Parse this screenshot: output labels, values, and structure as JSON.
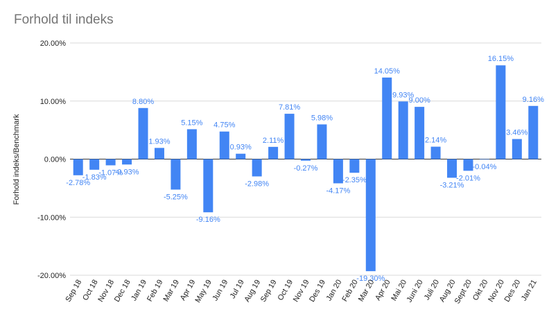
{
  "chart_data": {
    "type": "bar",
    "title": "Forhold til indeks",
    "ylabel": "Forhold indeks/Benchmark",
    "xlabel": "",
    "ylim": [
      -20,
      20
    ],
    "yticks": [
      "-20.00%",
      "-10.00%",
      "0.00%",
      "10.00%",
      "20.00%"
    ],
    "ytick_values": [
      -20,
      -10,
      0,
      10,
      20
    ],
    "grid": true,
    "legend": "none",
    "bar_color": "#4285f4",
    "label_color": "#4285f4",
    "categories": [
      "Sep 18",
      "Oct 18",
      "Nov 18",
      "Dec 18",
      "Jan 19",
      "Feb 19",
      "Mar 19",
      "Apr 19",
      "May 19",
      "Jun 19",
      "Jul 19",
      "Aug 19",
      "Sep 19",
      "Oct 19",
      "Nov 19",
      "Des 19",
      "Jan 20",
      "Feb 20",
      "Mar 20",
      "Apr 20",
      "Mai 20",
      "Juni 20",
      "Juli 20",
      "Aug 20",
      "Sept 20",
      "Okt 20",
      "Nov 20",
      "Des 20",
      "Jan 21"
    ],
    "values": [
      -2.78,
      -1.83,
      -1.07,
      -0.93,
      8.8,
      1.93,
      -5.25,
      5.15,
      -9.16,
      4.75,
      0.93,
      -2.98,
      2.11,
      7.81,
      -0.27,
      5.98,
      -4.17,
      -2.35,
      -19.3,
      14.05,
      9.93,
      9.0,
      2.14,
      -3.21,
      -2.01,
      -0.04,
      16.15,
      3.46,
      9.16
    ],
    "data_labels": [
      "-2.78%",
      "-1.83%",
      "-1.07%",
      "-0.93%",
      "8.80%",
      "1.93%",
      "-5.25%",
      "5.15%",
      "-9.16%",
      "4.75%",
      "0.93%",
      "-2.98%",
      "2.11%",
      "7.81%",
      "-0.27%",
      "5.98%",
      "-4.17%",
      "-2.35%",
      "-19.30%",
      "14.05%",
      "9.93%",
      "9.00%",
      "2.14%",
      "-3.21%",
      "-2.01%",
      "-0.04%",
      "16.15%",
      "3.46%",
      "9.16%"
    ]
  }
}
